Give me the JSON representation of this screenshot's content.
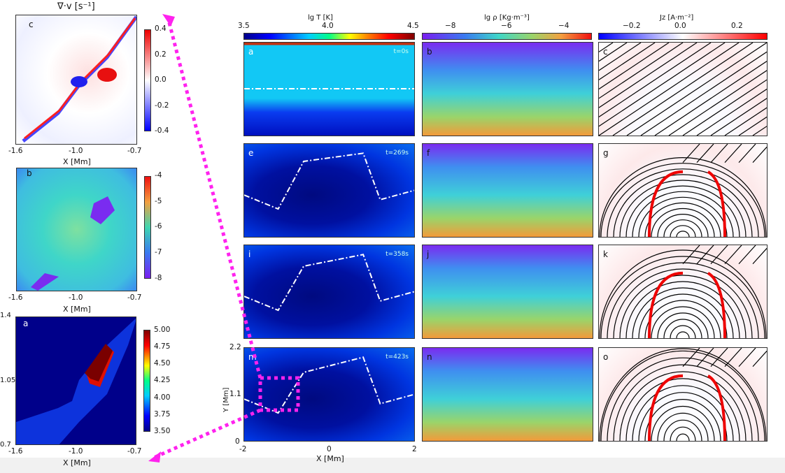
{
  "left_column": {
    "panel_c": {
      "title": "∇·v [s⁻¹]",
      "label": "c",
      "xlabel": "X [Mm]",
      "xticks": [
        "-1.6",
        "-1.0",
        "-0.7"
      ],
      "cbar_ticks": [
        "0.4",
        "0.2",
        "0.0",
        "-0.2",
        "-0.4"
      ]
    },
    "panel_b": {
      "label": "b",
      "xlabel": "X [Mm]",
      "xticks": [
        "-1.6",
        "-1.0",
        "-0.7"
      ],
      "cbar_ticks": [
        "-4",
        "-5",
        "-6",
        "-7",
        "-8"
      ]
    },
    "panel_a": {
      "label": "a",
      "xlabel": "X [Mm]",
      "xticks": [
        "-1.6",
        "-1.0",
        "-0.7"
      ],
      "yticks": [
        "1.4",
        "1.05",
        "0.7"
      ],
      "cbar_ticks": [
        "5.00",
        "4.75",
        "4.50",
        "4.25",
        "4.00",
        "3.75",
        "3.50"
      ]
    }
  },
  "colorbars": [
    {
      "label": "lg T [K]",
      "ticks": [
        "3.5",
        "4.0",
        "4.5"
      ]
    },
    {
      "label": "lg ρ [Kg·m⁻³]",
      "ticks": [
        "−8",
        "−6",
        "−4"
      ]
    },
    {
      "label": "Jz [A·m⁻²]",
      "ticks": [
        "−0.2",
        "0.0",
        "0.2"
      ]
    }
  ],
  "grid": {
    "rows": [
      {
        "time": "t=0s",
        "labels": [
          "a",
          "b",
          "c"
        ]
      },
      {
        "time": "t=269s",
        "labels": [
          "e",
          "f",
          "g"
        ]
      },
      {
        "time": "t=358s",
        "labels": [
          "i",
          "j",
          "k"
        ]
      },
      {
        "time": "t=423s",
        "labels": [
          "m",
          "n",
          "o"
        ]
      }
    ],
    "ylabel": "Y [Mm]",
    "yticks": [
      "2.2",
      "1.1",
      "0"
    ],
    "xlabel": "X [Mm]",
    "xticks": [
      "-2",
      "0",
      "2"
    ]
  },
  "colors": {
    "arrow": "#ff22ee"
  },
  "chart_data": {
    "type": "heatmap",
    "panels": [
      {
        "quantity": "lg T [K]",
        "range": [
          3.5,
          4.5
        ],
        "colormap": "jet"
      },
      {
        "quantity": "lg ρ [Kg·m⁻³]",
        "range": [
          -9,
          -3
        ],
        "colormap": "rainbow"
      },
      {
        "quantity": "Jz [A·m⁻²]",
        "range": [
          -0.3,
          0.3
        ],
        "colormap": "bwr"
      },
      {
        "quantity": "∇·v [s⁻¹]",
        "range": [
          -0.4,
          0.4
        ],
        "colormap": "bwr"
      },
      {
        "quantity": "lg ρ zoom",
        "range": [
          -8,
          -4
        ],
        "colormap": "rainbow"
      },
      {
        "quantity": "lg T zoom",
        "range": [
          3.5,
          5.0
        ],
        "colormap": "jet"
      }
    ],
    "x_range_Mm": [
      -2,
      2
    ],
    "y_range_Mm": [
      0,
      2.2
    ],
    "zoom_x_range_Mm": [
      -1.6,
      -0.7
    ],
    "zoom_y_range_Mm": [
      0.7,
      1.4
    ]
  }
}
